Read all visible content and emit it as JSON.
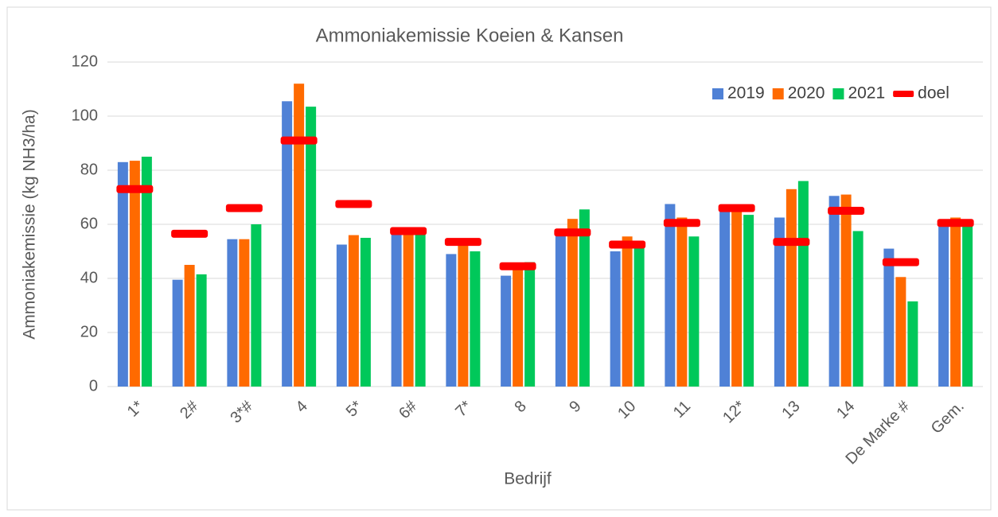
{
  "chart_data": {
    "type": "bar",
    "title": "Ammoniakemissie Koeien & Kansen",
    "x_label": "Bedrijf",
    "y_label": "Ammoniakemissie (kg NH3/ha)",
    "categories": [
      "1*",
      "2#",
      "3*#",
      "4",
      "5*",
      "6#",
      "7*",
      "8",
      "9",
      "10",
      "11",
      "12*",
      "13",
      "14",
      "De Marke #",
      "Gem."
    ],
    "series": [
      {
        "name": "2019",
        "color": "#4f81d6",
        "values": [
          83,
          39.5,
          54.5,
          105.5,
          52.5,
          57,
          49,
          41,
          57,
          50,
          67.5,
          65,
          62.5,
          70.5,
          51,
          61
        ]
      },
      {
        "name": "2020",
        "color": "#ff6a00",
        "values": [
          83.5,
          45,
          54.5,
          112,
          56,
          57,
          53,
          44,
          62,
          55.5,
          62.5,
          66,
          73,
          71,
          40.5,
          62.5
        ]
      },
      {
        "name": "2021",
        "color": "#00c85a",
        "values": [
          85,
          41.5,
          60,
          103.5,
          55,
          57,
          50,
          46,
          65.5,
          52,
          55.5,
          63.5,
          76,
          57.5,
          31.5,
          61
        ]
      },
      {
        "name": "doel",
        "color": "#ff0000",
        "style": "dash",
        "values": [
          73,
          56.5,
          66,
          91,
          67.5,
          57.5,
          53.5,
          44.5,
          57,
          52.5,
          60.5,
          66,
          53.5,
          65,
          46,
          60.5
        ]
      }
    ],
    "ylim": [
      0,
      120
    ],
    "yticks": [
      0,
      20,
      40,
      60,
      80,
      100,
      120
    ],
    "grid": true,
    "legend": "top-right"
  }
}
